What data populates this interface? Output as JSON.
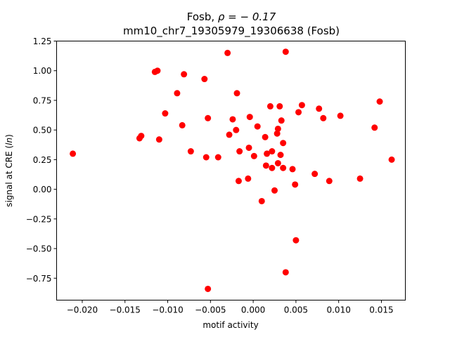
{
  "chart_data": {
    "type": "scatter",
    "title_prefix": "Fosb, ",
    "title_rho": "ρ = − 0.17",
    "title_line2": "mm10_chr7_19305979_19306638 (Fosb)",
    "xlabel": "motif activity",
    "ylabel_prefix": "signal at CRE (",
    "ylabel_italic": "ln",
    "ylabel_suffix": ")",
    "xlim": [
      -0.023,
      0.0178
    ],
    "ylim": [
      -0.935,
      1.25
    ],
    "x_ticks": [
      {
        "value": -0.02,
        "label": "−0.020"
      },
      {
        "value": -0.015,
        "label": "−0.015"
      },
      {
        "value": -0.01,
        "label": "−0.010"
      },
      {
        "value": -0.005,
        "label": "−0.005"
      },
      {
        "value": 0.0,
        "label": "0.000"
      },
      {
        "value": 0.005,
        "label": "0.005"
      },
      {
        "value": 0.01,
        "label": "0.010"
      },
      {
        "value": 0.015,
        "label": "0.015"
      }
    ],
    "y_ticks": [
      {
        "value": -0.75,
        "label": "−0.75"
      },
      {
        "value": -0.5,
        "label": "−0.50"
      },
      {
        "value": -0.25,
        "label": "−0.25"
      },
      {
        "value": 0.0,
        "label": "0.00"
      },
      {
        "value": 0.25,
        "label": "0.25"
      },
      {
        "value": 0.5,
        "label": "0.50"
      },
      {
        "value": 0.75,
        "label": "0.75"
      },
      {
        "value": 1.0,
        "label": "1.00"
      },
      {
        "value": 1.25,
        "label": "1.25"
      }
    ],
    "marker_color": "#ff0000",
    "points": [
      [
        -0.0211,
        0.3
      ],
      [
        -0.0133,
        0.43
      ],
      [
        -0.0131,
        0.45
      ],
      [
        -0.0115,
        0.99
      ],
      [
        -0.0112,
        1.0
      ],
      [
        -0.011,
        0.42
      ],
      [
        -0.0103,
        0.64
      ],
      [
        -0.0089,
        0.81
      ],
      [
        -0.0083,
        0.54
      ],
      [
        -0.0081,
        0.97
      ],
      [
        -0.0073,
        0.32
      ],
      [
        -0.0057,
        0.93
      ],
      [
        -0.0055,
        0.27
      ],
      [
        -0.0053,
        0.6
      ],
      [
        -0.0053,
        -0.84
      ],
      [
        -0.0041,
        0.27
      ],
      [
        -0.003,
        1.15
      ],
      [
        -0.0028,
        0.46
      ],
      [
        -0.0024,
        0.59
      ],
      [
        -0.002,
        0.5
      ],
      [
        -0.0019,
        0.81
      ],
      [
        -0.0016,
        0.32
      ],
      [
        -0.0017,
        0.07
      ],
      [
        -0.0006,
        0.09
      ],
      [
        -0.0005,
        0.35
      ],
      [
        -0.0004,
        0.61
      ],
      [
        0.0001,
        0.28
      ],
      [
        0.0005,
        0.53
      ],
      [
        0.001,
        -0.1
      ],
      [
        0.0014,
        0.44
      ],
      [
        0.0015,
        0.2
      ],
      [
        0.0016,
        0.3
      ],
      [
        0.002,
        0.7
      ],
      [
        0.0022,
        0.18
      ],
      [
        0.0022,
        0.32
      ],
      [
        0.0025,
        -0.01
      ],
      [
        0.0028,
        0.47
      ],
      [
        0.0029,
        0.51
      ],
      [
        0.0029,
        0.22
      ],
      [
        0.0031,
        0.7
      ],
      [
        0.0032,
        0.29
      ],
      [
        0.0033,
        0.58
      ],
      [
        0.0035,
        0.39
      ],
      [
        0.0035,
        0.18
      ],
      [
        0.0038,
        1.16
      ],
      [
        0.0038,
        -0.7
      ],
      [
        0.0046,
        0.17
      ],
      [
        0.0049,
        0.04
      ],
      [
        0.005,
        -0.43
      ],
      [
        0.0053,
        0.65
      ],
      [
        0.0057,
        0.71
      ],
      [
        0.0072,
        0.13
      ],
      [
        0.0077,
        0.68
      ],
      [
        0.0082,
        0.6
      ],
      [
        0.0089,
        0.07
      ],
      [
        0.0102,
        0.62
      ],
      [
        0.0125,
        0.09
      ],
      [
        0.0142,
        0.52
      ],
      [
        0.0148,
        0.74
      ],
      [
        0.0162,
        0.25
      ]
    ]
  }
}
